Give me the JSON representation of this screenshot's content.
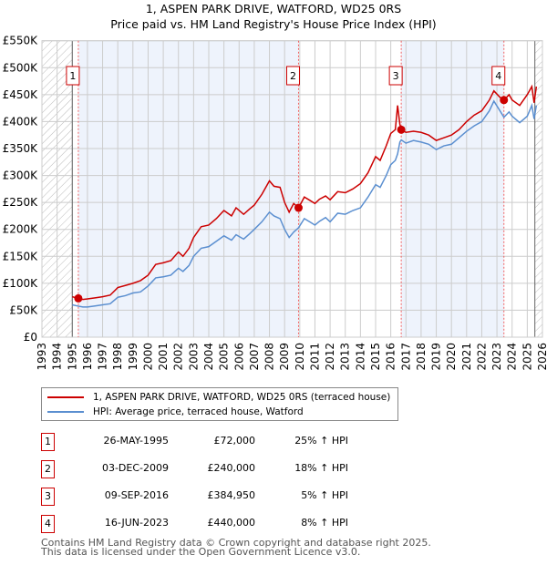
{
  "title": "1, ASPEN PARK DRIVE, WATFORD, WD25 0RS",
  "subtitle": "Price paid vs. HM Land Registry's House Price Index (HPI)",
  "chart_data": {
    "type": "line",
    "xlim": [
      1993,
      2026
    ],
    "ylim": [
      0,
      550000
    ],
    "y_ticks": [
      0,
      50000,
      100000,
      150000,
      200000,
      250000,
      300000,
      350000,
      400000,
      450000,
      500000,
      550000
    ],
    "y_tick_labels": [
      "£0",
      "£50K",
      "£100K",
      "£150K",
      "£200K",
      "£250K",
      "£300K",
      "£350K",
      "£400K",
      "£450K",
      "£500K",
      "£550K"
    ],
    "x_ticks": [
      1993,
      1994,
      1995,
      1996,
      1997,
      1998,
      1999,
      2000,
      2001,
      2002,
      2003,
      2004,
      2005,
      2006,
      2007,
      2008,
      2009,
      2010,
      2011,
      2012,
      2013,
      2014,
      2015,
      2016,
      2017,
      2018,
      2019,
      2020,
      2021,
      2022,
      2023,
      2024,
      2025,
      2026
    ],
    "grid": true,
    "series": [
      {
        "name": "1, ASPEN PARK DRIVE, WATFORD, WD25 0RS (terraced house)",
        "color": "#cc0000",
        "x": [
          1995.0,
          1995.4,
          1995.7,
          1996,
          1996.5,
          1997,
          1997.5,
          1998,
          1998.5,
          1999,
          1999.5,
          2000,
          2000.5,
          2001,
          2001.5,
          2002,
          2002.3,
          2002.7,
          2003,
          2003.5,
          2004,
          2004.5,
          2005,
          2005.5,
          2005.8,
          2006.3,
          2006.7,
          2007,
          2007.5,
          2008,
          2008.3,
          2008.7,
          2009,
          2009.3,
          2009.6,
          2009.92,
          2010.3,
          2010.6,
          2011,
          2011.3,
          2011.7,
          2012,
          2012.5,
          2013,
          2013.5,
          2014,
          2014.5,
          2015,
          2015.3,
          2015.7,
          2016,
          2016.3,
          2016.45,
          2016.6,
          2016.69,
          2017,
          2017.5,
          2018,
          2018.5,
          2019,
          2019.5,
          2020,
          2020.5,
          2021,
          2021.5,
          2022,
          2022.5,
          2022.8,
          2023.2,
          2023.46,
          2023.8,
          2024,
          2024.5,
          2025,
          2025.3,
          2025.45,
          2025.6
        ],
        "y": [
          75000,
          72000,
          70000,
          71000,
          73000,
          75000,
          78000,
          92000,
          96000,
          100000,
          105000,
          115000,
          135000,
          138000,
          142000,
          158000,
          150000,
          165000,
          185000,
          205000,
          208000,
          220000,
          235000,
          225000,
          240000,
          228000,
          238000,
          245000,
          265000,
          290000,
          280000,
          278000,
          250000,
          232000,
          248000,
          240000,
          260000,
          255000,
          248000,
          256000,
          262000,
          255000,
          270000,
          268000,
          275000,
          285000,
          305000,
          335000,
          328000,
          355000,
          378000,
          385000,
          430000,
          395000,
          384950,
          380000,
          382000,
          380000,
          375000,
          365000,
          370000,
          375000,
          385000,
          400000,
          412000,
          420000,
          440000,
          457000,
          445000,
          440000,
          450000,
          440000,
          430000,
          450000,
          465000,
          435000,
          465000
        ]
      },
      {
        "name": "HPI: Average price, terraced house, Watford",
        "color": "#5b8fd0",
        "x": [
          1995.0,
          1995.4,
          1995.7,
          1996,
          1996.5,
          1997,
          1997.5,
          1998,
          1998.5,
          1999,
          1999.5,
          2000,
          2000.5,
          2001,
          2001.5,
          2002,
          2002.3,
          2002.7,
          2003,
          2003.5,
          2004,
          2004.5,
          2005,
          2005.5,
          2005.8,
          2006.3,
          2006.7,
          2007,
          2007.5,
          2008,
          2008.3,
          2008.7,
          2009,
          2009.3,
          2009.6,
          2009.92,
          2010.3,
          2010.6,
          2011,
          2011.3,
          2011.7,
          2012,
          2012.5,
          2013,
          2013.5,
          2014,
          2014.5,
          2015,
          2015.3,
          2015.7,
          2016,
          2016.3,
          2016.45,
          2016.6,
          2016.69,
          2017,
          2017.5,
          2018,
          2018.5,
          2019,
          2019.5,
          2020,
          2020.5,
          2021,
          2021.5,
          2022,
          2022.5,
          2022.8,
          2023.2,
          2023.46,
          2023.8,
          2024,
          2024.5,
          2025,
          2025.3,
          2025.45,
          2025.6
        ],
        "y": [
          60000,
          57600,
          56000,
          56000,
          58000,
          60000,
          62000,
          74000,
          77000,
          82000,
          84000,
          95000,
          110000,
          112000,
          115000,
          128000,
          122000,
          133000,
          150000,
          165000,
          168000,
          178000,
          188000,
          180000,
          190000,
          182000,
          192000,
          200000,
          214000,
          232000,
          225000,
          220000,
          200000,
          185000,
          195000,
          203000,
          220000,
          215000,
          208000,
          215000,
          222000,
          214000,
          230000,
          228000,
          235000,
          240000,
          260000,
          283000,
          278000,
          300000,
          320000,
          328000,
          340000,
          362000,
          366000,
          360000,
          365000,
          362000,
          358000,
          348000,
          355000,
          358000,
          370000,
          382000,
          392000,
          400000,
          420000,
          438000,
          420000,
          408000,
          418000,
          410000,
          398000,
          410000,
          430000,
          405000,
          430000
        ]
      }
    ],
    "sales": [
      {
        "n": "1",
        "x": 1995.4,
        "y": 72000
      },
      {
        "n": "2",
        "x": 2009.92,
        "y": 240000
      },
      {
        "n": "3",
        "x": 2016.69,
        "y": 384950
      },
      {
        "n": "4",
        "x": 2023.46,
        "y": 440000
      }
    ],
    "shaded_ranges": [
      [
        1995.4,
        2009.92
      ],
      [
        2016.69,
        2023.46
      ]
    ],
    "hatched_ranges": [
      [
        1993,
        1995
      ],
      [
        2025.5,
        2026
      ]
    ]
  },
  "legend": {
    "red": "1, ASPEN PARK DRIVE, WATFORD, WD25 0RS (terraced house)",
    "blue": "HPI: Average price, terraced house, Watford"
  },
  "table": [
    {
      "n": "1",
      "date": "26-MAY-1995",
      "price": "£72,000",
      "hpi": "25% ↑ HPI"
    },
    {
      "n": "2",
      "date": "03-DEC-2009",
      "price": "£240,000",
      "hpi": "18% ↑ HPI"
    },
    {
      "n": "3",
      "date": "09-SEP-2016",
      "price": "£384,950",
      "hpi": "5% ↑ HPI"
    },
    {
      "n": "4",
      "date": "16-JUN-2023",
      "price": "£440,000",
      "hpi": "8% ↑ HPI"
    }
  ],
  "footer": {
    "line1": "Contains HM Land Registry data © Crown copyright and database right 2025.",
    "line2": "This data is licensed under the Open Government Licence v3.0."
  }
}
